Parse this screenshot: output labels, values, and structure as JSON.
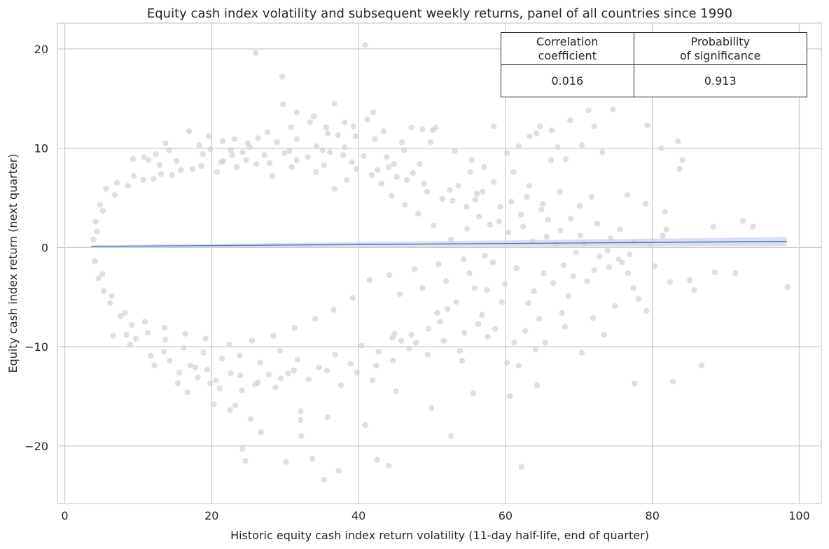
{
  "chart_data": {
    "type": "scatter",
    "title": "Equity cash index volatility and subsequent weekly returns, panel of all countries since 1990",
    "xlabel": "Historic equity cash index return volatility (11-day half-life, end of quarter)",
    "ylabel": "Equity cash index return (next quarter)",
    "xlim": [
      -1,
      103
    ],
    "ylim": [
      -25.8,
      22.6
    ],
    "x_ticks": [
      0,
      20,
      40,
      60,
      80,
      100
    ],
    "y_ticks": [
      -20,
      -10,
      0,
      10,
      20
    ],
    "grid": true,
    "point_color": "#d3d3d3",
    "regression": {
      "color": "#4c72b0",
      "band_color": "#c9d6ec",
      "x": [
        3.6,
        98.3
      ],
      "y": [
        0.1,
        0.6
      ],
      "ci_halfwidth": [
        0.12,
        0.45
      ]
    },
    "points": [
      [
        26,
        19.6
      ],
      [
        40.9,
        20.4
      ],
      [
        29.6,
        17.2
      ],
      [
        29.7,
        14.4
      ],
      [
        31.6,
        13.6
      ],
      [
        36.7,
        14.5
      ],
      [
        42,
        13.6
      ],
      [
        38.1,
        12.6
      ],
      [
        33.4,
        12.6
      ],
      [
        39.3,
        12.2
      ],
      [
        35.8,
        11.5
      ],
      [
        37.2,
        11.3
      ],
      [
        30.8,
        12.1
      ],
      [
        16.9,
        11.7
      ],
      [
        13.7,
        10.5
      ],
      [
        26.3,
        11
      ],
      [
        24.9,
        10.5
      ],
      [
        21.5,
        10.7
      ],
      [
        22.6,
        9.8
      ],
      [
        19.8,
        9.9
      ],
      [
        10.8,
        9.1
      ],
      [
        9.3,
        8.9
      ],
      [
        45.9,
        10.6
      ],
      [
        46.2,
        9.8
      ],
      [
        47.2,
        12.1
      ],
      [
        48.7,
        11.9
      ],
      [
        49.8,
        10.6
      ],
      [
        50.1,
        11.8
      ],
      [
        50.5,
        12.1
      ],
      [
        48.3,
        8.4
      ],
      [
        53.1,
        9.7
      ],
      [
        55.4,
        8.8
      ],
      [
        57.1,
        8.1
      ],
      [
        58.4,
        12.2
      ],
      [
        60.2,
        9.5
      ],
      [
        61.1,
        7.6
      ],
      [
        61.8,
        10.2
      ],
      [
        63.3,
        11.2
      ],
      [
        64.2,
        11.5
      ],
      [
        64.7,
        12.2
      ],
      [
        66.3,
        11.8
      ],
      [
        67.1,
        10.1
      ],
      [
        68.2,
        8.9
      ],
      [
        68.8,
        12.8
      ],
      [
        71.3,
        13.8
      ],
      [
        72.1,
        12.2
      ],
      [
        74.6,
        13.9
      ],
      [
        79.3,
        12.3
      ],
      [
        81.2,
        10
      ],
      [
        83.5,
        10.7
      ],
      [
        84.1,
        8.8
      ],
      [
        83.7,
        7.9
      ],
      [
        70.4,
        10.3
      ],
      [
        66.2,
        8.8
      ],
      [
        73.2,
        9.6
      ],
      [
        58.4,
        6.6
      ],
      [
        55.2,
        7.6
      ],
      [
        52.8,
        4.7
      ],
      [
        56.9,
        5.6
      ],
      [
        63.2,
        6.2
      ],
      [
        65.1,
        4.4
      ],
      [
        67.4,
        5.6
      ],
      [
        70.1,
        4.2
      ],
      [
        71.7,
        5.1
      ],
      [
        76.6,
        5.3
      ],
      [
        79.1,
        4.4
      ],
      [
        81.7,
        3.6
      ],
      [
        88.3,
        2.1
      ],
      [
        92.3,
        2.7
      ],
      [
        93.7,
        2.1
      ],
      [
        60.3,
        15.9
      ],
      [
        29.9,
        9.5
      ],
      [
        31.6,
        10.9
      ],
      [
        34.3,
        10.2
      ],
      [
        36.1,
        9.6
      ],
      [
        43.8,
        9.1
      ],
      [
        42.2,
        10.9
      ],
      [
        44.8,
        8.4
      ],
      [
        21.3,
        8.6
      ],
      [
        18.8,
        9.4
      ],
      [
        15.2,
        8.7
      ],
      [
        12.9,
        8.3
      ],
      [
        11.4,
        8.8
      ],
      [
        27.2,
        9.3
      ],
      [
        24.2,
        9.6
      ],
      [
        30.6,
        9.7
      ],
      [
        9.7,
        -9.2
      ],
      [
        8.4,
        -8.8
      ],
      [
        6.6,
        -8.9
      ],
      [
        12.2,
        -11.9
      ],
      [
        13.5,
        -10.5
      ],
      [
        15.4,
        -13.7
      ],
      [
        16.7,
        -14.6
      ],
      [
        18.1,
        -13.1
      ],
      [
        19.8,
        -13.7
      ],
      [
        20.3,
        -15.8
      ],
      [
        21.1,
        -14.2
      ],
      [
        22.5,
        -16.4
      ],
      [
        23.2,
        -15.9
      ],
      [
        24.1,
        -14.4
      ],
      [
        25.9,
        -13.8
      ],
      [
        25.3,
        -17.3
      ],
      [
        26.7,
        -18.6
      ],
      [
        24.6,
        -21.5
      ],
      [
        24.2,
        -20.3
      ],
      [
        30.1,
        -21.6
      ],
      [
        32.1,
        -16.5
      ],
      [
        32.1,
        -17.4
      ],
      [
        32.2,
        -19
      ],
      [
        33.7,
        -21.3
      ],
      [
        35.3,
        -23.4
      ],
      [
        35.8,
        -17.1
      ],
      [
        37.3,
        -22.5
      ],
      [
        40.9,
        -17.9
      ],
      [
        41.9,
        -13.4
      ],
      [
        42.5,
        -21.4
      ],
      [
        44.1,
        -22
      ],
      [
        45.1,
        -14.5
      ],
      [
        49.9,
        -16.2
      ],
      [
        52.6,
        -19
      ],
      [
        55.6,
        -14.7
      ],
      [
        61.8,
        -11.9
      ],
      [
        62.2,
        -22.1
      ],
      [
        64.3,
        -13.9
      ],
      [
        60.6,
        -15
      ],
      [
        61.2,
        -9.6
      ],
      [
        64.1,
        -10.3
      ],
      [
        65.4,
        -9.6
      ],
      [
        68.1,
        -8
      ],
      [
        70.4,
        -10.6
      ],
      [
        73.4,
        -8.8
      ],
      [
        77.6,
        -13.7
      ],
      [
        82.4,
        -3.5
      ],
      [
        82.8,
        -13.5
      ],
      [
        85.1,
        -3.3
      ],
      [
        85.7,
        -4.3
      ],
      [
        86.7,
        -11.9
      ],
      [
        88.5,
        -2.5
      ],
      [
        91.3,
        -2.6
      ],
      [
        98.4,
        -4
      ],
      [
        81.9,
        1.8
      ],
      [
        81.4,
        1.2
      ],
      [
        75.9,
        -1.5
      ],
      [
        74.1,
        -2
      ],
      [
        72.1,
        -2.3
      ],
      [
        69.2,
        -2.9
      ],
      [
        66.5,
        -3.6
      ],
      [
        63.1,
        -5.6
      ],
      [
        59.5,
        -5.5
      ],
      [
        57.5,
        -4.3
      ],
      [
        55.8,
        -4.1
      ],
      [
        53.3,
        -5.5
      ],
      [
        52.1,
        -6.2
      ],
      [
        51.1,
        -7.5
      ],
      [
        49.5,
        -8.2
      ],
      [
        47.2,
        -8.8
      ],
      [
        45.8,
        -9.4
      ],
      [
        44.6,
        -9.1
      ],
      [
        53.8,
        -10.4
      ],
      [
        54.1,
        -11.4
      ],
      [
        57.6,
        -9
      ],
      [
        60.2,
        -11.6
      ],
      [
        58.6,
        -8.2
      ],
      [
        56.8,
        -6.8
      ],
      [
        62.7,
        -8.4
      ],
      [
        64.6,
        -7.2
      ],
      [
        67.7,
        -6.6
      ],
      [
        71.9,
        -7.1
      ],
      [
        74.9,
        -5.9
      ],
      [
        77.4,
        -4.1
      ],
      [
        78.1,
        -5.2
      ],
      [
        79.2,
        -6.4
      ],
      [
        77.5,
        0.5
      ],
      [
        74.3,
        0.9
      ],
      [
        70.2,
        1.2
      ],
      [
        67.5,
        1.7
      ],
      [
        65.8,
        2.8
      ],
      [
        62.1,
        3.3
      ],
      [
        59.1,
        2.6
      ],
      [
        56.4,
        3.1
      ],
      [
        54.8,
        1.9
      ],
      [
        52.6,
        0.8
      ],
      [
        50.2,
        2.2
      ],
      [
        48.1,
        3.4
      ],
      [
        46.3,
        4.3
      ],
      [
        44.5,
        5.2
      ],
      [
        43.1,
        6.4
      ],
      [
        41.8,
        7.3
      ],
      [
        39.7,
        7.9
      ],
      [
        38.4,
        6.8
      ],
      [
        36.7,
        5.9
      ],
      [
        34.2,
        7.6
      ],
      [
        30.9,
        8.1
      ],
      [
        28.3,
        7.2
      ],
      [
        26.1,
        8.4
      ],
      [
        23.4,
        8.1
      ],
      [
        20.7,
        7.6
      ],
      [
        17.4,
        7.9
      ],
      [
        14.6,
        7.3
      ],
      [
        12.1,
        6.9
      ],
      [
        9.4,
        7.2
      ],
      [
        7.1,
        6.5
      ],
      [
        5.6,
        5.9
      ],
      [
        4.8,
        4.3
      ],
      [
        4.2,
        2.6
      ],
      [
        3.9,
        0.8
      ],
      [
        4.1,
        -1.4
      ],
      [
        4.6,
        -3.1
      ],
      [
        5.3,
        -4.4
      ],
      [
        6.2,
        -5.6
      ],
      [
        7.6,
        -6.9
      ],
      [
        9.1,
        -7.8
      ],
      [
        11.3,
        -8.6
      ],
      [
        13.7,
        -9.3
      ],
      [
        16.2,
        -10.1
      ],
      [
        18.9,
        -10.6
      ],
      [
        21.4,
        -11.2
      ],
      [
        23.8,
        -10.9
      ],
      [
        26.6,
        -11.6
      ],
      [
        29.3,
        -10.4
      ],
      [
        31.7,
        -11.3
      ],
      [
        34.6,
        -12.1
      ],
      [
        36.8,
        -10.8
      ],
      [
        38.9,
        -11.7
      ],
      [
        40.4,
        -9.9
      ],
      [
        42.7,
        -10.5
      ],
      [
        44.9,
        -8.7
      ],
      [
        47.8,
        -9.6
      ],
      [
        50.7,
        -6.6
      ],
      [
        27.8,
        -12.8
      ],
      [
        29.4,
        -13.2
      ],
      [
        31.2,
        -12.4
      ],
      [
        22.6,
        -12.7
      ],
      [
        19.4,
        -12.3
      ],
      [
        17.1,
        -11.9
      ],
      [
        14.3,
        -11.4
      ],
      [
        11.7,
        -10.9
      ],
      [
        8.9,
        -9.8
      ],
      [
        33.9,
        13.2
      ],
      [
        27.6,
        11.6
      ],
      [
        23.1,
        10.9
      ],
      [
        19.6,
        11.2
      ],
      [
        35.1,
        9.8
      ],
      [
        46.6,
        6.8
      ],
      [
        49.3,
        5.6
      ],
      [
        51.4,
        4.9
      ],
      [
        54.7,
        4.1
      ],
      [
        57.9,
        2.3
      ],
      [
        60.4,
        1.5
      ],
      [
        63.7,
        0.6
      ],
      [
        66.9,
        0.2
      ],
      [
        69.6,
        -0.5
      ],
      [
        72.8,
        -0.9
      ],
      [
        75.4,
        -1.2
      ],
      [
        61.5,
        -2.1
      ],
      [
        58.3,
        -1.5
      ],
      [
        55.1,
        -2.6
      ],
      [
        51.9,
        -3.4
      ],
      [
        48.7,
        -4.1
      ],
      [
        45.6,
        -4.7
      ],
      [
        59.9,
        -3.7
      ],
      [
        63.9,
        -4.4
      ],
      [
        68.6,
        -4.9
      ],
      [
        71.1,
        -3.4
      ],
      [
        76.7,
        -2.6
      ],
      [
        80.3,
        -1.9
      ],
      [
        47.4,
        7.5
      ],
      [
        44.1,
        8.1
      ],
      [
        40.7,
        9.2
      ],
      [
        38.1,
        10.1
      ],
      [
        53.6,
        6.2
      ],
      [
        56.1,
        5.4
      ],
      [
        60.8,
        4.6
      ],
      [
        62.9,
        5.1
      ],
      [
        64.9,
        3.8
      ],
      [
        68.9,
        2.9
      ],
      [
        72.5,
        2.4
      ],
      [
        75.6,
        1.8
      ],
      [
        67.9,
        -1.8
      ],
      [
        65.2,
        -2.6
      ],
      [
        57.2,
        -0.8
      ],
      [
        54.3,
        -1.2
      ],
      [
        50.9,
        -1.7
      ],
      [
        47.6,
        -2.2
      ],
      [
        44.2,
        -2.8
      ],
      [
        41.5,
        -3.3
      ],
      [
        39.2,
        -5.1
      ],
      [
        36.6,
        -6.3
      ],
      [
        34.1,
        -7.2
      ],
      [
        31.3,
        -8.1
      ],
      [
        28.4,
        -8.9
      ],
      [
        25.5,
        -9.4
      ],
      [
        22.4,
        -9.8
      ],
      [
        19.2,
        -9.2
      ],
      [
        16.4,
        -8.7
      ],
      [
        13.6,
        -8.1
      ],
      [
        10.9,
        -7.5
      ],
      [
        8.2,
        -6.6
      ],
      [
        6.4,
        -4.9
      ],
      [
        5.1,
        -2.7
      ],
      [
        4.4,
        1.6
      ],
      [
        5.2,
        3.7
      ],
      [
        6.8,
        5.3
      ],
      [
        8.6,
        6.2
      ],
      [
        10.7,
        6.8
      ],
      [
        13.1,
        7.4
      ],
      [
        15.8,
        7.8
      ],
      [
        18.6,
        8.2
      ],
      [
        21.6,
        8.7
      ],
      [
        24.7,
        8.8
      ],
      [
        27.9,
        8.5
      ],
      [
        31.6,
        8.8
      ],
      [
        35.3,
        8.3
      ],
      [
        39.1,
        8.6
      ],
      [
        42.6,
        7.8
      ],
      [
        45.2,
        7.1
      ],
      [
        48.9,
        6.4
      ],
      [
        52.4,
        5.8
      ],
      [
        55.9,
        4.8
      ],
      [
        59.3,
        4.1
      ],
      [
        62.4,
        2.1
      ],
      [
        65.6,
        1.1
      ],
      [
        70.8,
        0.4
      ],
      [
        73.9,
        -0.3
      ],
      [
        76.9,
        -0.7
      ],
      [
        79.8,
        0.2
      ],
      [
        35.6,
        12.1
      ],
      [
        39.6,
        11.2
      ],
      [
        43.4,
        11.7
      ],
      [
        41.2,
        12.9
      ],
      [
        37.9,
        9.3
      ],
      [
        33.1,
        9.1
      ],
      [
        28.9,
        10.6
      ],
      [
        25.2,
        10.1
      ],
      [
        22.8,
        9.3
      ],
      [
        18.3,
        10.3
      ],
      [
        14.2,
        9.8
      ],
      [
        12.4,
        9.4
      ],
      [
        15.6,
        -12.6
      ],
      [
        17.8,
        -12.1
      ],
      [
        20.6,
        -13.4
      ],
      [
        23.9,
        -12.9
      ],
      [
        26.3,
        -13.6
      ],
      [
        28.7,
        -14.1
      ],
      [
        30.4,
        -12.7
      ],
      [
        33.2,
        -13.3
      ],
      [
        35.7,
        -12.4
      ],
      [
        37.6,
        -13.9
      ],
      [
        39.8,
        -12.6
      ],
      [
        42.4,
        -11.9
      ],
      [
        44.7,
        -11.4
      ],
      [
        46.9,
        -10.2
      ],
      [
        49.4,
        -10.8
      ],
      [
        51.6,
        -9.4
      ],
      [
        54.4,
        -8.6
      ],
      [
        56.3,
        -7.7
      ]
    ],
    "stats_table": {
      "headers": [
        "Correlation\ncoefficient",
        "Probability\nof significance"
      ],
      "values": [
        "0.016",
        "0.913"
      ]
    }
  }
}
